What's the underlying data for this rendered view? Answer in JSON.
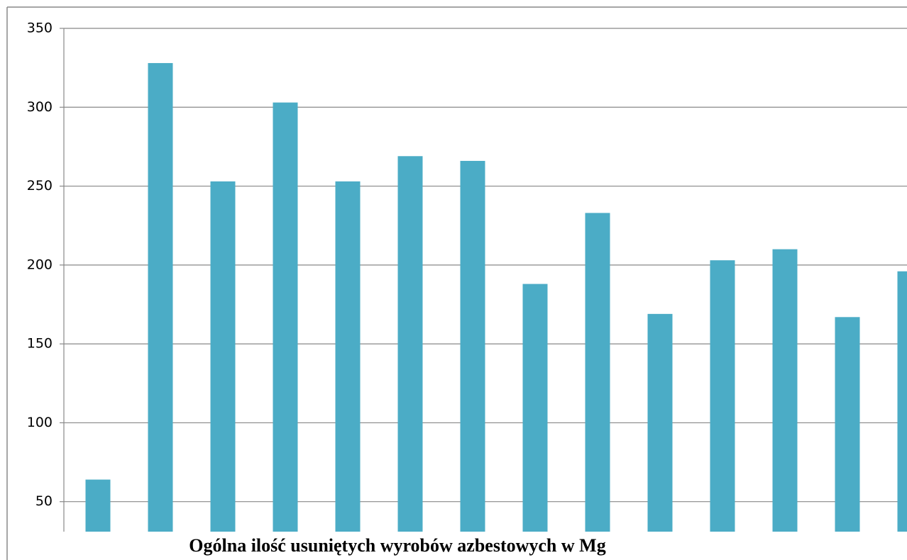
{
  "chart_data": {
    "type": "bar",
    "title": "Ogólna ilość usuniętych wyrobów azbestowych w Mg",
    "categories": [
      null,
      null,
      null,
      null,
      null,
      null,
      null,
      null,
      null,
      null,
      null,
      null,
      null,
      null
    ],
    "values": [
      64,
      328,
      253,
      303,
      253,
      269,
      266,
      188,
      233,
      169,
      203,
      210,
      167,
      196
    ],
    "color": "#4bacc6",
    "ylim": [
      31,
      350
    ],
    "yticks": [
      50,
      100,
      150,
      200,
      250,
      300,
      350
    ],
    "grid": true
  }
}
